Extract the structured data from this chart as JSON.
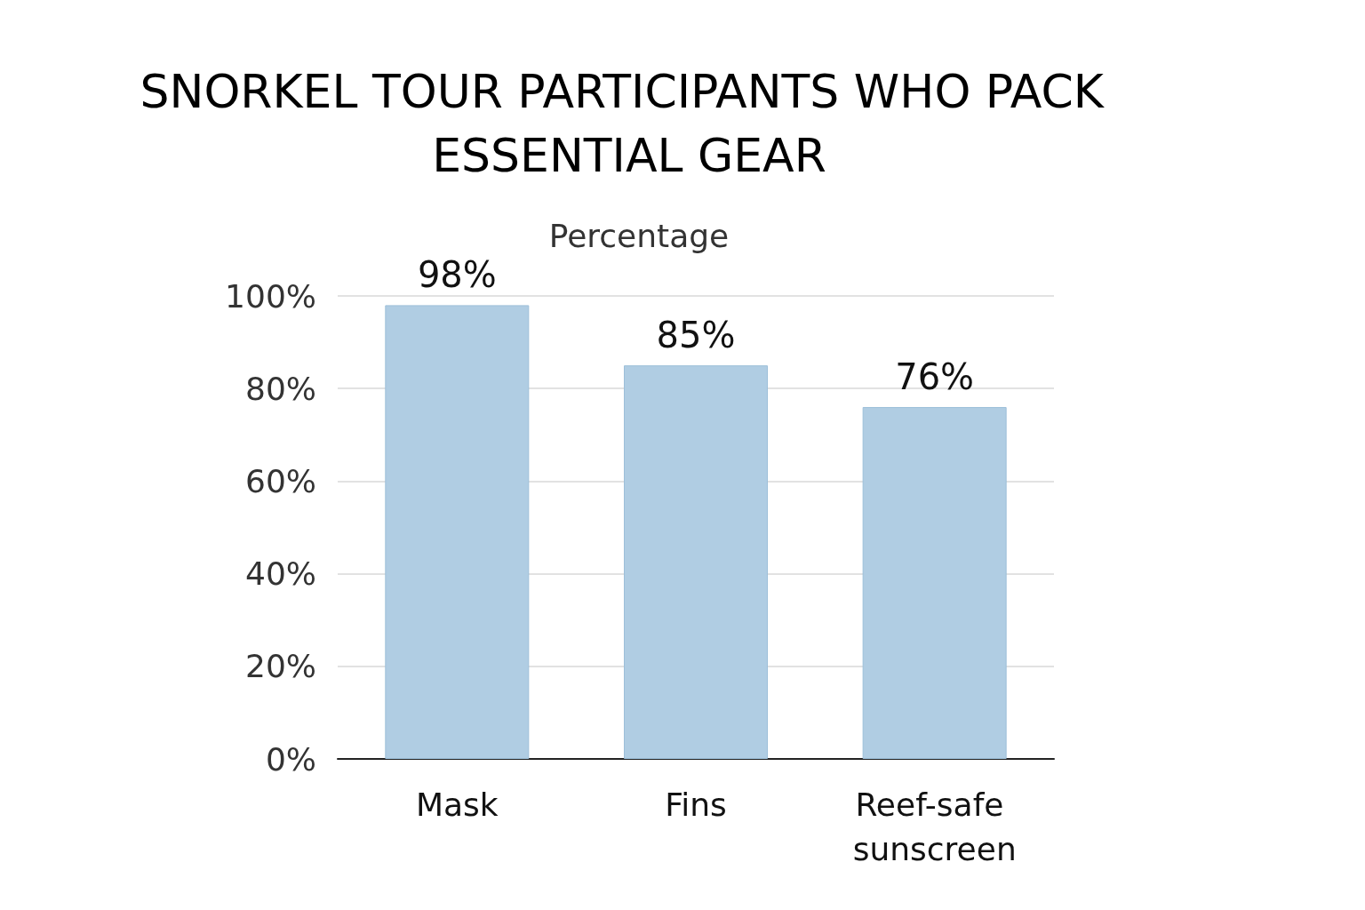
{
  "chart_data": {
    "type": "bar",
    "title": "SNORKEL TOUR PARTICIPANTS WHO PACK ESSENTIAL GEAR",
    "subtitle": "Percentage",
    "categories": [
      "Mask",
      "Fins",
      "Reef-safe sunscreen"
    ],
    "values": [
      98,
      85,
      76
    ],
    "value_labels": [
      "98%",
      "85%",
      "76%"
    ],
    "color": "#b0cde3",
    "ylim": [
      0,
      100
    ],
    "yticks": [
      {
        "value": 0,
        "label": "0%"
      },
      {
        "value": 20,
        "label": "20%"
      },
      {
        "value": 40,
        "label": "40%"
      },
      {
        "value": 60,
        "label": "60%"
      },
      {
        "value": 80,
        "label": "80%"
      },
      {
        "value": 100,
        "label": "100%"
      }
    ],
    "grid": "y"
  }
}
